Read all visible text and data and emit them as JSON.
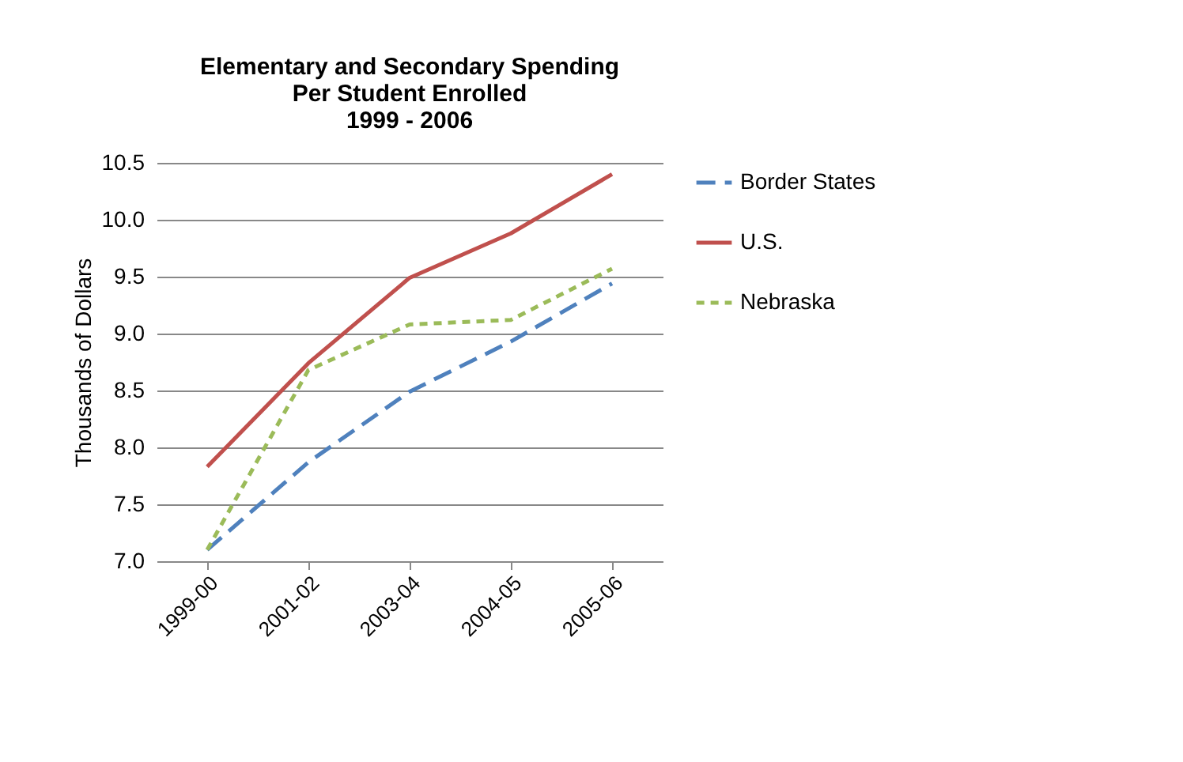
{
  "chart_data": {
    "type": "line",
    "title": "Elementary and Secondary Spending\nPer Student Enrolled\n1999 - 2006",
    "ylabel": "Thousands of Dollars",
    "categories": [
      "1999-00",
      "2001-02",
      "2003-04",
      "2004-05",
      "2005-06"
    ],
    "series": [
      {
        "name": "Border States",
        "color": "#4f81bd",
        "line_style": "dashed",
        "values": [
          7.1,
          7.87,
          8.49,
          8.93,
          9.44
        ]
      },
      {
        "name": "U.S.",
        "color": "#c0504d",
        "line_style": "solid",
        "values": [
          7.83,
          8.74,
          9.49,
          9.88,
          10.4
        ]
      },
      {
        "name": "Nebraska",
        "color": "#9bbb59",
        "line_style": "dotted",
        "values": [
          7.1,
          8.68,
          9.08,
          9.12,
          9.57
        ]
      }
    ],
    "ylim": [
      7,
      10.5
    ],
    "yticks": [
      {
        "value": 7,
        "label": "7.0"
      },
      {
        "value": 7.5,
        "label": "7.5"
      },
      {
        "value": 8,
        "label": "8.0"
      },
      {
        "value": 8.5,
        "label": "8.5"
      },
      {
        "value": 9,
        "label": "9.0"
      },
      {
        "value": 9.5,
        "label": "9.5"
      },
      {
        "value": 10,
        "label": "10.0"
      },
      {
        "value": 10.5,
        "label": "10.5"
      }
    ],
    "grid": "y",
    "legend": "right",
    "marker": "none"
  }
}
